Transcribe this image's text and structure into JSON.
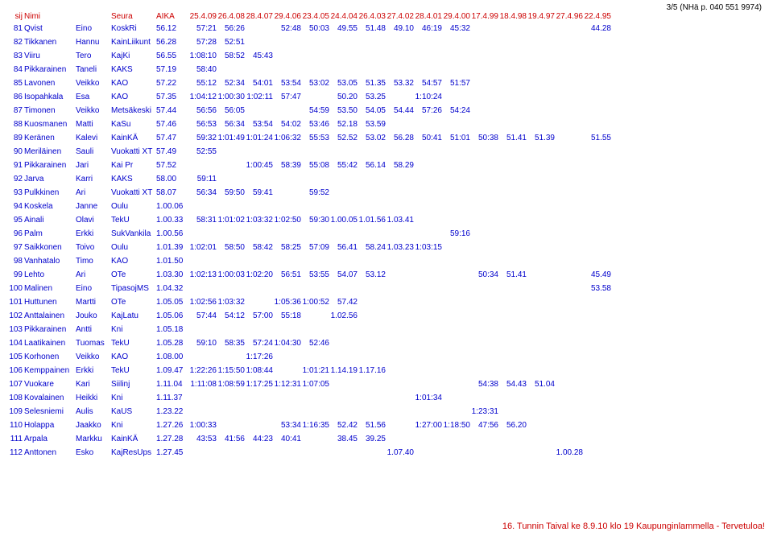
{
  "page_note": "3/5 (NHä p. 040 551 9974)",
  "footer": "16. Tunnin Taival ke 8.9.10 klo 19 Kaupunginlammella - Tervetuloa!",
  "colors": {
    "header": "#cc0000",
    "data": "#0000cc",
    "bg": "#ffffff",
    "footer": "#cc0000"
  },
  "headers": {
    "sij": "sij",
    "nimi": "Nimi",
    "fn": "",
    "seura": "Seura",
    "aika": "AIKA",
    "dates": [
      "25.4.09",
      "26.4.08",
      "28.4.07",
      "29.4.06",
      "23.4.05",
      "24.4.04",
      "26.4.03",
      "27.4.02",
      "28.4.01",
      "29.4.00",
      "17.4.99",
      "18.4.98",
      "19.4.97",
      "27.4.96",
      "22.4.95"
    ]
  },
  "rows": [
    {
      "sij": "81",
      "ln": "Qvist",
      "fn": "Eino",
      "seura": "KoskRi",
      "aika": "56.12",
      "d": [
        "57:21",
        "56:26",
        "",
        "52:48",
        "50:03",
        "49.55",
        "51.48",
        "49.10",
        "46:19",
        "45:32",
        "",
        "",
        "",
        "",
        "44.28"
      ]
    },
    {
      "sij": "82",
      "ln": "Tikkanen",
      "fn": "Hannu",
      "seura": "KainLiikunt",
      "aika": "56.28",
      "d": [
        "57:28",
        "52:51",
        "",
        "",
        "",
        "",
        "",
        "",
        "",
        "",
        "",
        "",
        "",
        "",
        ""
      ]
    },
    {
      "sij": "83",
      "ln": "Viiru",
      "fn": "Tero",
      "seura": "KajKi",
      "aika": "56.55",
      "d": [
        "1:08:10",
        "58:52",
        "45:43",
        "",
        "",
        "",
        "",
        "",
        "",
        "",
        "",
        "",
        "",
        "",
        ""
      ]
    },
    {
      "sij": "84",
      "ln": "Pikkarainen",
      "fn": "Taneli",
      "seura": "KAKS",
      "aika": "57.19",
      "d": [
        "58:40",
        "",
        "",
        "",
        "",
        "",
        "",
        "",
        "",
        "",
        "",
        "",
        "",
        "",
        ""
      ]
    },
    {
      "sij": "85",
      "ln": "Lavonen",
      "fn": "Veikko",
      "seura": "KAO",
      "aika": "57.22",
      "d": [
        "55:12",
        "52:34",
        "54:01",
        "53:54",
        "53:02",
        "53.05",
        "51.35",
        "53.32",
        "54:57",
        "51:57",
        "",
        "",
        "",
        "",
        ""
      ]
    },
    {
      "sij": "86",
      "ln": "Isopahkala",
      "fn": "Esa",
      "seura": "KAO",
      "aika": "57.35",
      "d": [
        "1:04:12",
        "1:00:30",
        "1:02:11",
        "57:47",
        "",
        "50.20",
        "53.25",
        "",
        "1:10:24",
        "",
        "",
        "",
        "",
        "",
        ""
      ]
    },
    {
      "sij": "87",
      "ln": "Timonen",
      "fn": "Veikko",
      "seura": "Metsäkeski",
      "aika": "57.44",
      "d": [
        "56:56",
        "56:05",
        "",
        "",
        "54:59",
        "53.50",
        "54.05",
        "54.44",
        "57:26",
        "54:24",
        "",
        "",
        "",
        "",
        ""
      ]
    },
    {
      "sij": "88",
      "ln": "Kuosmanen",
      "fn": "Matti",
      "seura": "KaSu",
      "aika": "57.46",
      "d": [
        "56:53",
        "56:34",
        "53:54",
        "54:02",
        "53:46",
        "52.18",
        "53.59",
        "",
        "",
        "",
        "",
        "",
        "",
        "",
        ""
      ]
    },
    {
      "sij": "89",
      "ln": "Keränen",
      "fn": "Kalevi",
      "seura": "KainKÄ",
      "aika": "57.47",
      "d": [
        "59:32",
        "1:01:49",
        "1:01:24",
        "1:06:32",
        "55:53",
        "52.52",
        "53.02",
        "56.28",
        "50:41",
        "51:01",
        "50:38",
        "51.41",
        "51.39",
        "",
        "51.55"
      ]
    },
    {
      "sij": "90",
      "ln": "Meriläinen",
      "fn": "Sauli",
      "seura": "Vuokatti XT",
      "aika": "57.49",
      "d": [
        "52:55",
        "",
        "",
        "",
        "",
        "",
        "",
        "",
        "",
        "",
        "",
        "",
        "",
        "",
        ""
      ]
    },
    {
      "sij": "91",
      "ln": "Pikkarainen",
      "fn": "Jari",
      "seura": "Kai Pr",
      "aika": "57.52",
      "d": [
        "",
        "",
        "1:00:45",
        "58:39",
        "55:08",
        "55:42",
        "56.14",
        "58.29",
        "",
        "",
        "",
        "",
        "",
        "",
        ""
      ]
    },
    {
      "sij": "92",
      "ln": "Jarva",
      "fn": "Karri",
      "seura": "KAKS",
      "aika": "58.00",
      "d": [
        "59:11",
        "",
        "",
        "",
        "",
        "",
        "",
        "",
        "",
        "",
        "",
        "",
        "",
        "",
        ""
      ]
    },
    {
      "sij": "93",
      "ln": "Pulkkinen",
      "fn": "Ari",
      "seura": "Vuokatti XT",
      "aika": "58.07",
      "d": [
        "56:34",
        "59:50",
        "59:41",
        "",
        "59:52",
        "",
        "",
        "",
        "",
        "",
        "",
        "",
        "",
        "",
        ""
      ]
    },
    {
      "sij": "94",
      "ln": "Koskela",
      "fn": "Janne",
      "seura": "Oulu",
      "aika": "1.00.06",
      "d": [
        "",
        "",
        "",
        "",
        "",
        "",
        "",
        "",
        "",
        "",
        "",
        "",
        "",
        "",
        ""
      ]
    },
    {
      "sij": "95",
      "ln": "Ainali",
      "fn": "Olavi",
      "seura": "TekU",
      "aika": "1.00.33",
      "d": [
        "58:31",
        "1:01:02",
        "1:03:32",
        "1:02:50",
        "59:30",
        "1.00.05",
        "1.01.56",
        "1.03.41",
        "",
        "",
        "",
        "",
        "",
        "",
        ""
      ]
    },
    {
      "sij": "96",
      "ln": "Palm",
      "fn": "Erkki",
      "seura": "SukVankila",
      "aika": "1.00.56",
      "d": [
        "",
        "",
        "",
        "",
        "",
        "",
        "",
        "",
        "",
        "59:16",
        "",
        "",
        "",
        "",
        ""
      ]
    },
    {
      "sij": "97",
      "ln": "Saikkonen",
      "fn": "Toivo",
      "seura": "Oulu",
      "aika": "1.01.39",
      "d": [
        "1:02:01",
        "58:50",
        "58:42",
        "58:25",
        "57:09",
        "56.41",
        "58.24",
        "1.03.23",
        "1:03:15",
        "",
        "",
        "",
        "",
        "",
        ""
      ]
    },
    {
      "sij": "98",
      "ln": "Vanhatalo",
      "fn": "Timo",
      "seura": "KAO",
      "aika": "1.01.50",
      "d": [
        "",
        "",
        "",
        "",
        "",
        "",
        "",
        "",
        "",
        "",
        "",
        "",
        "",
        "",
        ""
      ]
    },
    {
      "sij": "99",
      "ln": "Lehto",
      "fn": "Ari",
      "seura": "OTe",
      "aika": "1.03.30",
      "d": [
        "1:02:13",
        "1:00:03",
        "1:02:20",
        "56:51",
        "53:55",
        "54.07",
        "53.12",
        "",
        "",
        "",
        "50:34",
        "51.41",
        "",
        "",
        "45.49"
      ]
    },
    {
      "sij": "100",
      "ln": "Malinen",
      "fn": "Eino",
      "seura": "TipasojMS",
      "aika": "1.04.32",
      "d": [
        "",
        "",
        "",
        "",
        "",
        "",
        "",
        "",
        "",
        "",
        "",
        "",
        "",
        "",
        "53.58"
      ]
    },
    {
      "sij": "101",
      "ln": "Huttunen",
      "fn": "Martti",
      "seura": "OTe",
      "aika": "1.05.05",
      "d": [
        "1:02:56",
        "1:03:32",
        "",
        "1:05:36",
        "1:00:52",
        "57.42",
        "",
        "",
        "",
        "",
        "",
        "",
        "",
        "",
        ""
      ]
    },
    {
      "sij": "102",
      "ln": "Anttalainen",
      "fn": "Jouko",
      "seura": "KajLatu",
      "aika": "1.05.06",
      "d": [
        "57:44",
        "54:12",
        "57:00",
        "55:18",
        "",
        "1.02.56",
        "",
        "",
        "",
        "",
        "",
        "",
        "",
        "",
        ""
      ]
    },
    {
      "sij": "103",
      "ln": "Pikkarainen",
      "fn": "Antti",
      "seura": "Kni",
      "aika": "1.05.18",
      "d": [
        "",
        "",
        "",
        "",
        "",
        "",
        "",
        "",
        "",
        "",
        "",
        "",
        "",
        "",
        ""
      ]
    },
    {
      "sij": "104",
      "ln": "Laatikainen",
      "fn": "Tuomas",
      "seura": "TekU",
      "aika": "1.05.28",
      "d": [
        "59:10",
        "58:35",
        "57:24",
        "1:04:30",
        "52:46",
        "",
        "",
        "",
        "",
        "",
        "",
        "",
        "",
        "",
        ""
      ]
    },
    {
      "sij": "105",
      "ln": "Korhonen",
      "fn": "Veikko",
      "seura": "KAO",
      "aika": "1.08.00",
      "d": [
        "",
        "",
        "1:17:26",
        "",
        "",
        "",
        "",
        "",
        "",
        "",
        "",
        "",
        "",
        "",
        ""
      ]
    },
    {
      "sij": "106",
      "ln": "Kemppainen",
      "fn": "Erkki",
      "seura": "TekU",
      "aika": "1.09.47",
      "d": [
        "1:22:26",
        "1:15:50",
        "1:08:44",
        "",
        "1:01:21",
        "1.14.19",
        "1.17.16",
        "",
        "",
        "",
        "",
        "",
        "",
        "",
        ""
      ]
    },
    {
      "sij": "107",
      "ln": "Vuokare",
      "fn": "Kari",
      "seura": "Siilinj",
      "aika": "1.11.04",
      "d": [
        "1:11:08",
        "1:08:59",
        "1:17:25",
        "1:12:31",
        "1:07:05",
        "",
        "",
        "",
        "",
        "",
        "54:38",
        "54.43",
        "51.04",
        "",
        ""
      ]
    },
    {
      "sij": "108",
      "ln": "Kovalainen",
      "fn": "Heikki",
      "seura": "Kni",
      "aika": "1.11.37",
      "d": [
        "",
        "",
        "",
        "",
        "",
        "",
        "",
        "",
        "1:01:34",
        "",
        "",
        "",
        "",
        "",
        ""
      ]
    },
    {
      "sij": "109",
      "ln": "Selesniemi",
      "fn": "Aulis",
      "seura": "KaUS",
      "aika": "1.23.22",
      "d": [
        "",
        "",
        "",
        "",
        "",
        "",
        "",
        "",
        "",
        "",
        "1:23:31",
        "",
        "",
        "",
        ""
      ]
    },
    {
      "sij": "110",
      "ln": "Holappa",
      "fn": "Jaakko",
      "seura": "Kni",
      "aika": "1.27.26",
      "d": [
        "1:00:33",
        "",
        "",
        "53:34",
        "1:16:35",
        "52.42",
        "51.56",
        "",
        "1:27:00",
        "1:18:50",
        "47:56",
        "56.20",
        "",
        "",
        ""
      ]
    },
    {
      "sij": "111",
      "ln": "Arpala",
      "fn": "Markku",
      "seura": "KainKÄ",
      "aika": "1.27.28",
      "d": [
        "43:53",
        "41:56",
        "44:23",
        "40:41",
        "",
        "38.45",
        "39.25",
        "",
        "",
        "",
        "",
        "",
        "",
        "",
        ""
      ]
    },
    {
      "sij": "112",
      "ln": "Anttonen",
      "fn": "Esko",
      "seura": "KajResUps",
      "aika": "1.27.45",
      "d": [
        "",
        "",
        "",
        "",
        "",
        "",
        "",
        "1.07.40",
        "",
        "",
        "",
        "",
        "",
        "1.00.28",
        ""
      ]
    }
  ]
}
